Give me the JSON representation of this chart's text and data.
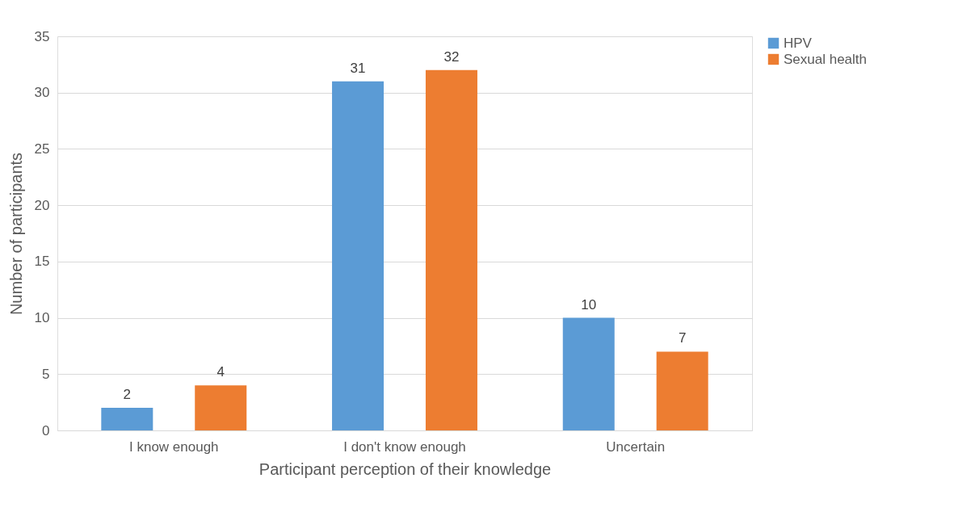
{
  "chart_data": {
    "type": "bar",
    "xlabel": "Participant perception of their knowledge",
    "ylabel": "Number of participants",
    "categories": [
      "I know enough",
      "I don't know enough",
      "Uncertain"
    ],
    "series": [
      {
        "name": "HPV",
        "color": "#5b9bd5",
        "values": [
          2,
          31,
          10
        ]
      },
      {
        "name": "Sexual health",
        "color": "#ed7d31",
        "values": [
          4,
          32,
          7
        ]
      }
    ],
    "ylim": [
      0,
      35
    ],
    "yticks": [
      0,
      5,
      10,
      15,
      20,
      25,
      30,
      35
    ],
    "grid": "y",
    "legend": "right",
    "data_labels": true
  }
}
